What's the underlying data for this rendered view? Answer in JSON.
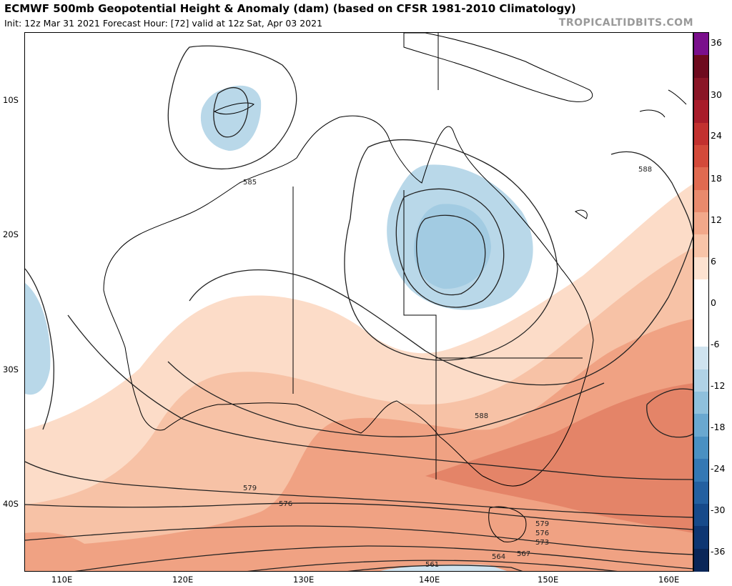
{
  "header": {
    "title": "ECMWF 500mb Geopotential Height & Anomaly (dam) (based on CFSR 1981-2010 Climatology)",
    "subtitle": "Init: 12z Mar 31 2021   Forecast Hour: [72]   valid at 12z Sat, Apr 03 2021",
    "brand": "TROPICALTIDBITS.COM"
  },
  "map": {
    "lat_labels": [
      "10S",
      "20S",
      "30S",
      "40S"
    ],
    "lon_labels": [
      "110E",
      "120E",
      "130E",
      "140E",
      "150E",
      "160E"
    ],
    "contour_labels": [
      "585",
      "588",
      "588",
      "579",
      "576",
      "579",
      "576",
      "573",
      "561",
      "564",
      "567"
    ]
  },
  "colorbar": {
    "ticks": [
      "36",
      "30",
      "24",
      "18",
      "12",
      "6",
      "0",
      "-6",
      "-12",
      "-18",
      "-24",
      "-30",
      "-36"
    ],
    "colors": [
      "#7a0f8c",
      "#6e0a1e",
      "#8a1526",
      "#a81c2a",
      "#c2312f",
      "#d34a3a",
      "#e06a50",
      "#e98a6c",
      "#f2a88a",
      "#f8c4a8",
      "#fde2d0",
      "#ffffff",
      "#ffffff",
      "#ffffff",
      "#cfe3ef",
      "#b0d2e6",
      "#8fc0dc",
      "#6aa8d0",
      "#4a90c2",
      "#3478b4",
      "#2460a0",
      "#174a8a",
      "#0e3672",
      "#0a2658"
    ]
  }
}
